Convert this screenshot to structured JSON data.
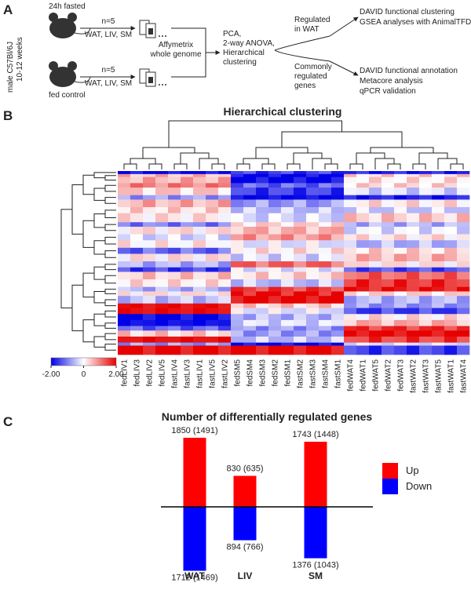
{
  "panel_a": {
    "label": "A",
    "fasted": "24h fasted",
    "control": "fed control",
    "mouse_strain": "male C57Bl/6J",
    "mouse_age": "10-12 weeks",
    "n_top": "n=5",
    "tissues_top": "WAT, LIV, SM",
    "n_bottom": "n=5",
    "tissues_bottom": "WAT, LIV, SM",
    "array": [
      "Affymetrix",
      "whole genome"
    ],
    "analysis": [
      "PCA,",
      "2-way ANOVA,",
      "Hierarchical",
      "clustering"
    ],
    "wat": [
      "Regulated",
      "in WAT"
    ],
    "common": [
      "Commonly",
      "regulated",
      "genes"
    ],
    "wat_follow": [
      "DAVID functional clustering",
      "GSEA analyses with AnimalTFDB"
    ],
    "common_follow": [
      "DAVID functional annotation",
      "Metacore analysis",
      "qPCR validation"
    ]
  },
  "panel_b": {
    "label": "B",
    "title": "Hierarchical clustering",
    "samples": [
      "fedLIV1",
      "fedLIV3",
      "fedLIV2",
      "fedLIV5",
      "fastLIV4",
      "fastLIV3",
      "fastLIV1",
      "fastLIV5",
      "fastLIV2",
      "fedSM5",
      "fedSM4",
      "fedSM3",
      "fedSM2",
      "fedSM1",
      "fastSM2",
      "fastSM3",
      "fastSM4",
      "fastSM1",
      "fedWAT4",
      "fedWAT1",
      "fedWAT5",
      "fedWAT2",
      "fedWAT3",
      "fastWAT2",
      "fastWAT3",
      "fastWAT5",
      "fastWAT1",
      "fastWAT4"
    ],
    "colorbar_ticks": [
      {
        "value": -2,
        "label": "-2.00"
      },
      0,
      {
        "value": 2,
        "label": "2.00"
      }
    ]
  },
  "chart_data": {
    "type": "bar",
    "panel_label": "C",
    "title": "Number of differentially regulated genes",
    "categories": [
      "WAT",
      "LIV",
      "SM"
    ],
    "series": [
      {
        "name": "Up",
        "color": "#ff0000",
        "values": [
          1850,
          830,
          1743
        ],
        "value_labels": [
          "1850 (1491)",
          "830 (635)",
          "1743 (1448)"
        ]
      },
      {
        "name": "Down",
        "color": "#0000ff",
        "values": [
          1712,
          894,
          1376
        ],
        "value_labels": [
          "1712 (1469)",
          "894 (766)",
          "1376 (1043)"
        ]
      }
    ]
  }
}
